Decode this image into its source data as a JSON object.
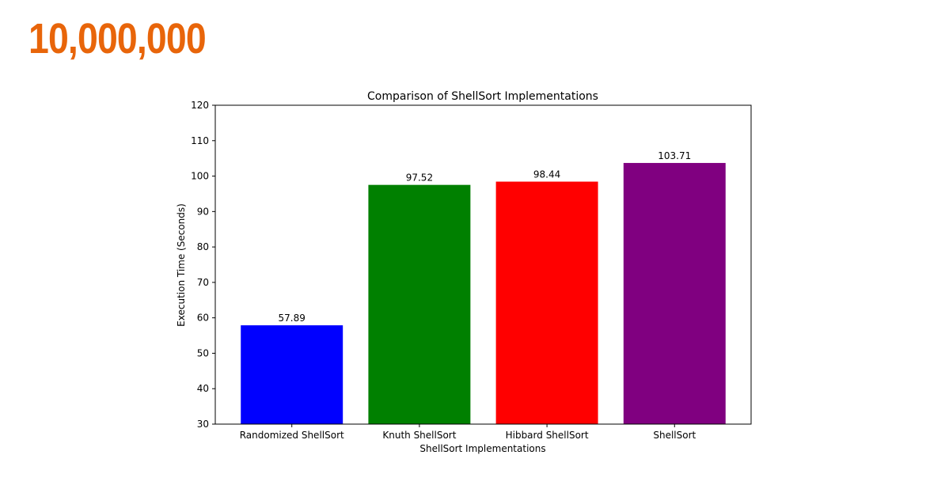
{
  "headline": {
    "text": "10,000,000",
    "color": "#E8650A"
  },
  "chart_data": {
    "type": "bar",
    "title": "Comparison of ShellSort Implementations",
    "xlabel": "ShellSort Implementations",
    "ylabel": "Execution Time (Seconds)",
    "categories": [
      "Randomized ShellSort",
      "Knuth ShellSort",
      "Hibbard ShellSort",
      "ShellSort"
    ],
    "values": [
      57.89,
      97.52,
      98.44,
      103.71
    ],
    "value_labels": [
      "57.89",
      "97.52",
      "98.44",
      "103.71"
    ],
    "colors": [
      "#0000ff",
      "#008000",
      "#ff0000",
      "#800080"
    ],
    "ylim": [
      30,
      120
    ],
    "yticks": [
      30,
      40,
      50,
      60,
      70,
      80,
      90,
      100,
      110,
      120
    ],
    "grid": false,
    "legend": false
  }
}
